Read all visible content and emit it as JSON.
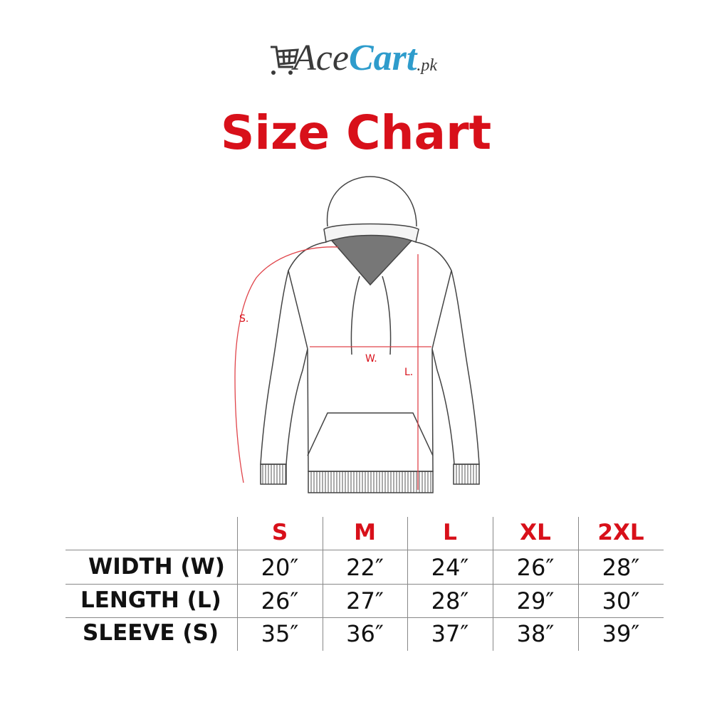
{
  "logo": {
    "part1": "Ace",
    "part2": "Cart",
    "suffix": ".pk",
    "colors": {
      "dark": "#3a3a3a",
      "blue": "#2e9ccc"
    },
    "icon": "shopping-cart-icon"
  },
  "title": "Size Chart",
  "accent_color": "#d8101a",
  "diagram": {
    "labels": {
      "sleeve": "S.",
      "width": "W.",
      "length": "L."
    }
  },
  "table": {
    "headers": [
      "S",
      "M",
      "L",
      "XL",
      "2XL"
    ],
    "rows": [
      {
        "label": "WIDTH (W)",
        "values": [
          "20″",
          "22″",
          "24″",
          "26″",
          "28″"
        ]
      },
      {
        "label": "LENGTH (L)",
        "values": [
          "26″",
          "27″",
          "28″",
          "29″",
          "30″"
        ]
      },
      {
        "label": "SLEEVE (S)",
        "values": [
          "35″",
          "36″",
          "37″",
          "38″",
          "39″"
        ]
      }
    ]
  }
}
